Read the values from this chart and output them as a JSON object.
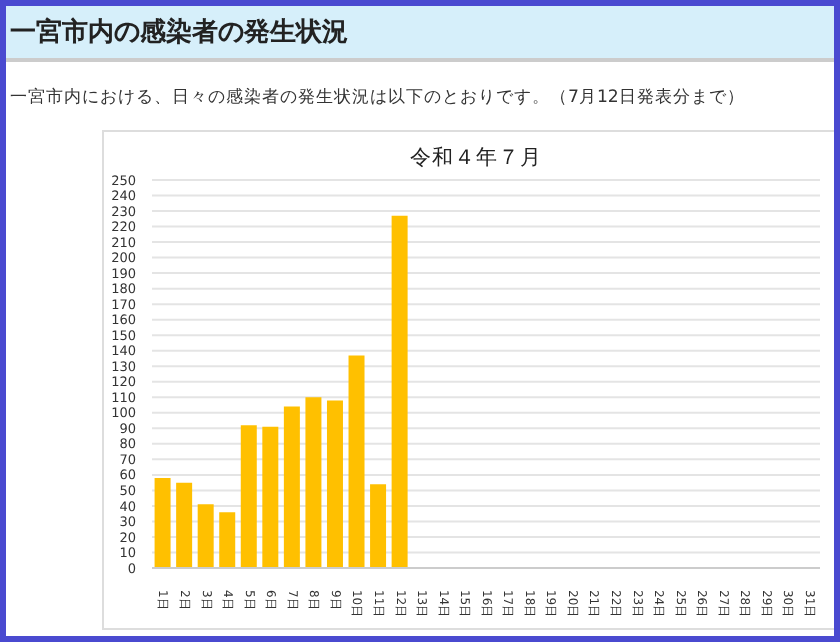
{
  "chart_data": {
    "type": "bar",
    "title": "令和４年７月",
    "annotations": [
      "一宮市内の感染者の発生状況",
      "一宮市内における、日々の感染者の発生状況は以下のとおりです。（7月12日発表分まで）"
    ],
    "categories": [
      "1日",
      "2日",
      "3日",
      "4日",
      "5日",
      "6日",
      "7日",
      "8日",
      "9日",
      "10日",
      "11日",
      "12日",
      "13日",
      "14日",
      "15日",
      "16日",
      "17日",
      "18日",
      "19日",
      "20日",
      "21日",
      "22日",
      "23日",
      "24日",
      "25日",
      "26日",
      "27日",
      "28日",
      "29日",
      "30日",
      "31日"
    ],
    "values": [
      58,
      55,
      41,
      36,
      92,
      91,
      104,
      110,
      108,
      137,
      54,
      227,
      null,
      null,
      null,
      null,
      null,
      null,
      null,
      null,
      null,
      null,
      null,
      null,
      null,
      null,
      null,
      null,
      null,
      null,
      null
    ],
    "color": "#ffc000",
    "ylim": [
      0,
      250
    ],
    "yticks": [
      0,
      10,
      20,
      30,
      40,
      50,
      60,
      70,
      80,
      90,
      100,
      110,
      120,
      130,
      140,
      150,
      160,
      170,
      180,
      190,
      200,
      210,
      220,
      230,
      240,
      250
    ],
    "grid": "y",
    "legend": false
  }
}
